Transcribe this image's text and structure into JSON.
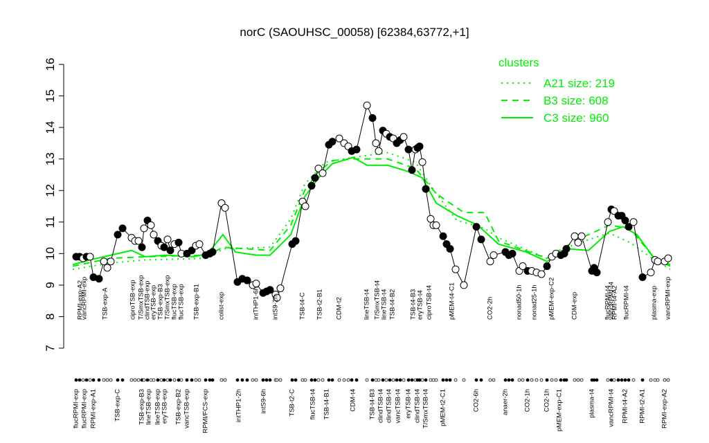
{
  "chart_data": {
    "type": "line",
    "title": "norC (SAOUHSC_00058) [62384,63772,+1]",
    "ylim": [
      7,
      16
    ],
    "yticks": [
      7,
      8,
      9,
      10,
      11,
      12,
      13,
      14,
      15,
      16
    ],
    "xlim": [
      0,
      875
    ],
    "points": {
      "x": [
        10,
        15,
        20,
        25,
        30,
        35,
        43,
        50,
        55,
        60,
        70,
        77,
        90,
        95,
        100,
        105,
        108,
        113,
        118,
        122,
        128,
        133,
        137,
        142,
        146,
        152,
        158,
        162,
        170,
        177,
        183,
        188,
        197,
        203,
        207,
        220,
        225,
        243,
        250,
        257,
        265,
        270,
        280,
        285,
        290,
        298,
        300,
        305,
        322,
        327,
        337,
        341,
        350,
        355,
        360,
        366,
        375,
        380,
        390,
        397,
        403,
        408,
        415,
        430,
        438,
        443,
        447,
        453,
        458,
        463,
        468,
        473,
        478,
        483,
        490,
        495,
        500,
        503,
        506,
        510,
        515,
        522,
        526,
        530,
        540,
        545,
        550,
        558,
        570,
        588,
        595,
        608,
        613,
        630,
        635,
        640,
        650,
        655,
        662,
        668,
        675,
        682,
        690,
        697,
        703,
        710,
        715,
        718,
        730,
        735,
        740,
        755,
        758,
        762,
        778,
        783,
        787,
        793,
        798,
        803,
        808,
        815,
        828,
        840,
        846,
        850,
        860,
        865
      ],
      "values": [
        9.9,
        9.9,
        9.85,
        9.9,
        9.9,
        9.25,
        9.2,
        9.75,
        9.55,
        9.75,
        10.6,
        10.8,
        10.5,
        10.4,
        10.4,
        10.2,
        10.8,
        11.05,
        10.9,
        10.6,
        10.4,
        10.25,
        10.2,
        10.45,
        10.1,
        10.3,
        10.35,
        10.0,
        10.0,
        10.1,
        10.25,
        10.3,
        9.95,
        10.0,
        10.05,
        11.6,
        11.45,
        9.1,
        9.2,
        9.15,
        9.0,
        9.05,
        8.75,
        8.8,
        8.85,
        8.7,
        8.6,
        8.9,
        10.3,
        10.4,
        11.65,
        11.5,
        12.15,
        12.4,
        12.7,
        12.55,
        13.45,
        13.55,
        13.65,
        13.5,
        13.4,
        13.25,
        13.3,
        14.7,
        14.3,
        13.5,
        13.25,
        13.9,
        13.8,
        13.7,
        13.65,
        13.5,
        13.6,
        13.7,
        13.3,
        12.65,
        13.3,
        13.35,
        13.4,
        12.9,
        12.05,
        11.1,
        10.9,
        10.9,
        10.55,
        10.3,
        10.15,
        9.5,
        9.0,
        10.85,
        10.45,
        9.75,
        9.95,
        10.05,
        9.95,
        10.0,
        9.45,
        9.6,
        9.45,
        9.45,
        9.4,
        9.35,
        9.6,
        9.9,
        10.0,
        9.95,
        10.0,
        10.15,
        10.55,
        10.35,
        10.55,
        9.45,
        9.55,
        9.4,
        11.0,
        11.4,
        11.35,
        11.2,
        11.2,
        11.05,
        10.85,
        11.0,
        9.25,
        9.4,
        9.8,
        9.75,
        9.75,
        9.85
      ],
      "filled": [
        true,
        true,
        false,
        true,
        false,
        true,
        true,
        false,
        false,
        false,
        true,
        true,
        false,
        false,
        false,
        true,
        false,
        true,
        false,
        false,
        true,
        false,
        true,
        false,
        true,
        false,
        true,
        false,
        true,
        true,
        false,
        false,
        true,
        true,
        true,
        false,
        false,
        true,
        true,
        true,
        false,
        false,
        true,
        true,
        true,
        false,
        false,
        false,
        true,
        true,
        false,
        false,
        true,
        true,
        false,
        false,
        true,
        true,
        false,
        false,
        false,
        true,
        true,
        false,
        true,
        false,
        false,
        true,
        false,
        true,
        false,
        true,
        true,
        false,
        true,
        true,
        false,
        true,
        true,
        false,
        true,
        false,
        false,
        false,
        true,
        true,
        true,
        false,
        false,
        true,
        true,
        false,
        false,
        true,
        true,
        true,
        false,
        false,
        true,
        false,
        false,
        false,
        true,
        false,
        false,
        true,
        true,
        true,
        false,
        false,
        false,
        true,
        true,
        true,
        false,
        true,
        false,
        true,
        true,
        true,
        true,
        false,
        true,
        false,
        false,
        false,
        false,
        false
      ]
    },
    "series": [
      {
        "name": "A21 size: 219",
        "color": "#00ee00",
        "style": "dotted",
        "x": [
          5,
          60,
          110,
          200,
          222,
          290,
          320,
          340,
          370,
          410,
          460,
          500,
          530,
          560,
          600,
          620,
          690,
          730,
          780,
          810,
          845,
          868
        ],
        "values": [
          9.5,
          9.7,
          9.8,
          9.85,
          10.15,
          10.2,
          11.1,
          12.2,
          12.9,
          13.05,
          13.2,
          12.9,
          11.9,
          11.05,
          10.8,
          10.5,
          9.85,
          10.3,
          10.65,
          10.35,
          9.8,
          9.5
        ]
      },
      {
        "name": "B3 size: 608",
        "color": "#00ee00",
        "style": "dashed",
        "x": [
          5,
          60,
          110,
          200,
          222,
          290,
          320,
          340,
          360,
          380,
          410,
          460,
          500,
          530,
          570,
          600,
          620,
          690,
          730,
          780,
          810,
          845,
          868
        ],
        "values": [
          9.6,
          9.85,
          9.9,
          9.95,
          10.2,
          10.1,
          10.9,
          12.0,
          12.6,
          12.95,
          13.0,
          13.0,
          12.7,
          11.9,
          11.3,
          11.3,
          10.4,
          9.85,
          10.4,
          10.9,
          10.8,
          9.85,
          9.6
        ]
      },
      {
        "name": "C3 size: 960",
        "color": "#00ee00",
        "style": "solid",
        "x": [
          5,
          30,
          60,
          90,
          110,
          140,
          180,
          200,
          222,
          240,
          270,
          290,
          320,
          340,
          360,
          380,
          410,
          430,
          460,
          490,
          510,
          530,
          560,
          590,
          620,
          660,
          690,
          720,
          750,
          780,
          800,
          820,
          845,
          868
        ],
        "values": [
          9.65,
          9.8,
          9.95,
          10.1,
          9.9,
          9.95,
          9.9,
          10.0,
          10.6,
          10.05,
          9.95,
          9.95,
          10.6,
          11.8,
          12.4,
          12.85,
          13.05,
          12.8,
          12.8,
          12.6,
          12.4,
          11.6,
          11.2,
          10.9,
          10.3,
          10.05,
          9.75,
          10.15,
          10.1,
          10.7,
          10.85,
          10.6,
          9.85,
          9.65
        ]
      }
    ],
    "legend_title": "clusters",
    "xticks_top": [
      {
        "value": 16,
        "label": "RPMI-exp-A2"
      },
      {
        "value": 22,
        "label": "vancRPMI-exp"
      },
      {
        "value": 52,
        "label": "TSB-exp-A"
      },
      {
        "value": 92,
        "label": "ciproTSB-exp"
      },
      {
        "value": 104,
        "label": "T/SmxTSB-exp"
      },
      {
        "value": 113,
        "label": "clindTSB-exp"
      },
      {
        "value": 122,
        "label": "eryTSB-exp"
      },
      {
        "value": 132,
        "label": "TSB-exp-B3"
      },
      {
        "value": 142,
        "label": "T/SmxTSB-exp"
      },
      {
        "value": 152,
        "label": "flucTSB-exp"
      },
      {
        "value": 162,
        "label": "flucTSB-exp"
      },
      {
        "value": 184,
        "label": "TSB-exp-B1"
      },
      {
        "value": 220,
        "label": "colist-exp"
      },
      {
        "value": 270,
        "label": "intTHP1-6h"
      },
      {
        "value": 298,
        "label": "intS9-2h"
      },
      {
        "value": 337,
        "label": "TSB-t4-C"
      },
      {
        "value": 362,
        "label": "TSB-t2-B1"
      },
      {
        "value": 390,
        "label": "CDM-t2"
      },
      {
        "value": 430,
        "label": "lineTSB-t4"
      },
      {
        "value": 445,
        "label": "T/SmxTSB-t4"
      },
      {
        "value": 455,
        "label": "lineTSB-t4"
      },
      {
        "value": 467,
        "label": "TSB-t4-B2"
      },
      {
        "value": 497,
        "label": "TSB-t4-B3"
      },
      {
        "value": 507,
        "label": "eryTSB-t4"
      },
      {
        "value": 520,
        "label": "ciproTSB-t4"
      },
      {
        "value": 553,
        "label": "pMEM-t4-C1"
      },
      {
        "value": 608,
        "label": "CO2-2h"
      },
      {
        "value": 650,
        "label": "nonad50-1h"
      },
      {
        "value": 672,
        "label": "nonad25-1h"
      },
      {
        "value": 697,
        "label": "pMEM-exp-C2"
      },
      {
        "value": 730,
        "label": "CDM-exp"
      },
      {
        "value": 778,
        "label": "flucRPMI-t4"
      },
      {
        "value": 783,
        "label": "vancRPMI-t4"
      },
      {
        "value": 788,
        "label": "RPMI-t4-A2"
      },
      {
        "value": 805,
        "label": "flucRPMI-t4"
      },
      {
        "value": 845,
        "label": "plasma-exp"
      },
      {
        "value": 865,
        "label": "vancRPMI-exp"
      }
    ],
    "xticks_bottom": [
      {
        "value": 10,
        "label": "flucRPMI-exp"
      },
      {
        "value": 22,
        "label": "flucRPMI-exp"
      },
      {
        "value": 35,
        "label": "RPMI-exp-A1"
      },
      {
        "value": 70,
        "label": "TSB-exp-C"
      },
      {
        "value": 105,
        "label": "TSB-exp-B3"
      },
      {
        "value": 115,
        "label": "lineTSB-exp"
      },
      {
        "value": 128,
        "label": "lineTSB-exp"
      },
      {
        "value": 138,
        "label": "eryTSB-exp"
      },
      {
        "value": 158,
        "label": "TSB-exp-B2"
      },
      {
        "value": 170,
        "label": "vancTSB-exp"
      },
      {
        "value": 197,
        "label": "RPMI/FCS-exp"
      },
      {
        "value": 245,
        "label": "intTHP1-2h"
      },
      {
        "value": 281,
        "label": "intS9-6h"
      },
      {
        "value": 322,
        "label": "TSB-t2-C"
      },
      {
        "value": 352,
        "label": "flucTSB-t4"
      },
      {
        "value": 372,
        "label": "TSB-t4-B1"
      },
      {
        "value": 410,
        "label": "CDM-t4"
      },
      {
        "value": 438,
        "label": "TSB-t4-B3"
      },
      {
        "value": 450,
        "label": "clindTSB-t4"
      },
      {
        "value": 462,
        "label": "clindTSB-t4"
      },
      {
        "value": 475,
        "label": "vancTSB-t4"
      },
      {
        "value": 490,
        "label": "eryTSB-t4"
      },
      {
        "value": 503,
        "label": "clindTSB-t4"
      },
      {
        "value": 515,
        "label": "T/SmxTSB-t4"
      },
      {
        "value": 540,
        "label": "pMEM-t2-C1"
      },
      {
        "value": 588,
        "label": "CO2-6h"
      },
      {
        "value": 630,
        "label": "anaer-2h"
      },
      {
        "value": 662,
        "label": "CO2-1h"
      },
      {
        "value": 690,
        "label": "CO2-1h"
      },
      {
        "value": 708,
        "label": "pMEM-exp-C1"
      },
      {
        "value": 755,
        "label": "plasma-t4"
      },
      {
        "value": 783,
        "label": "vancRPMI-t4"
      },
      {
        "value": 803,
        "label": "RPMI-t4-A2"
      },
      {
        "value": 828,
        "label": "RPMI-t2-A1"
      },
      {
        "value": 860,
        "label": "RPMI-exp-A2"
      }
    ]
  }
}
